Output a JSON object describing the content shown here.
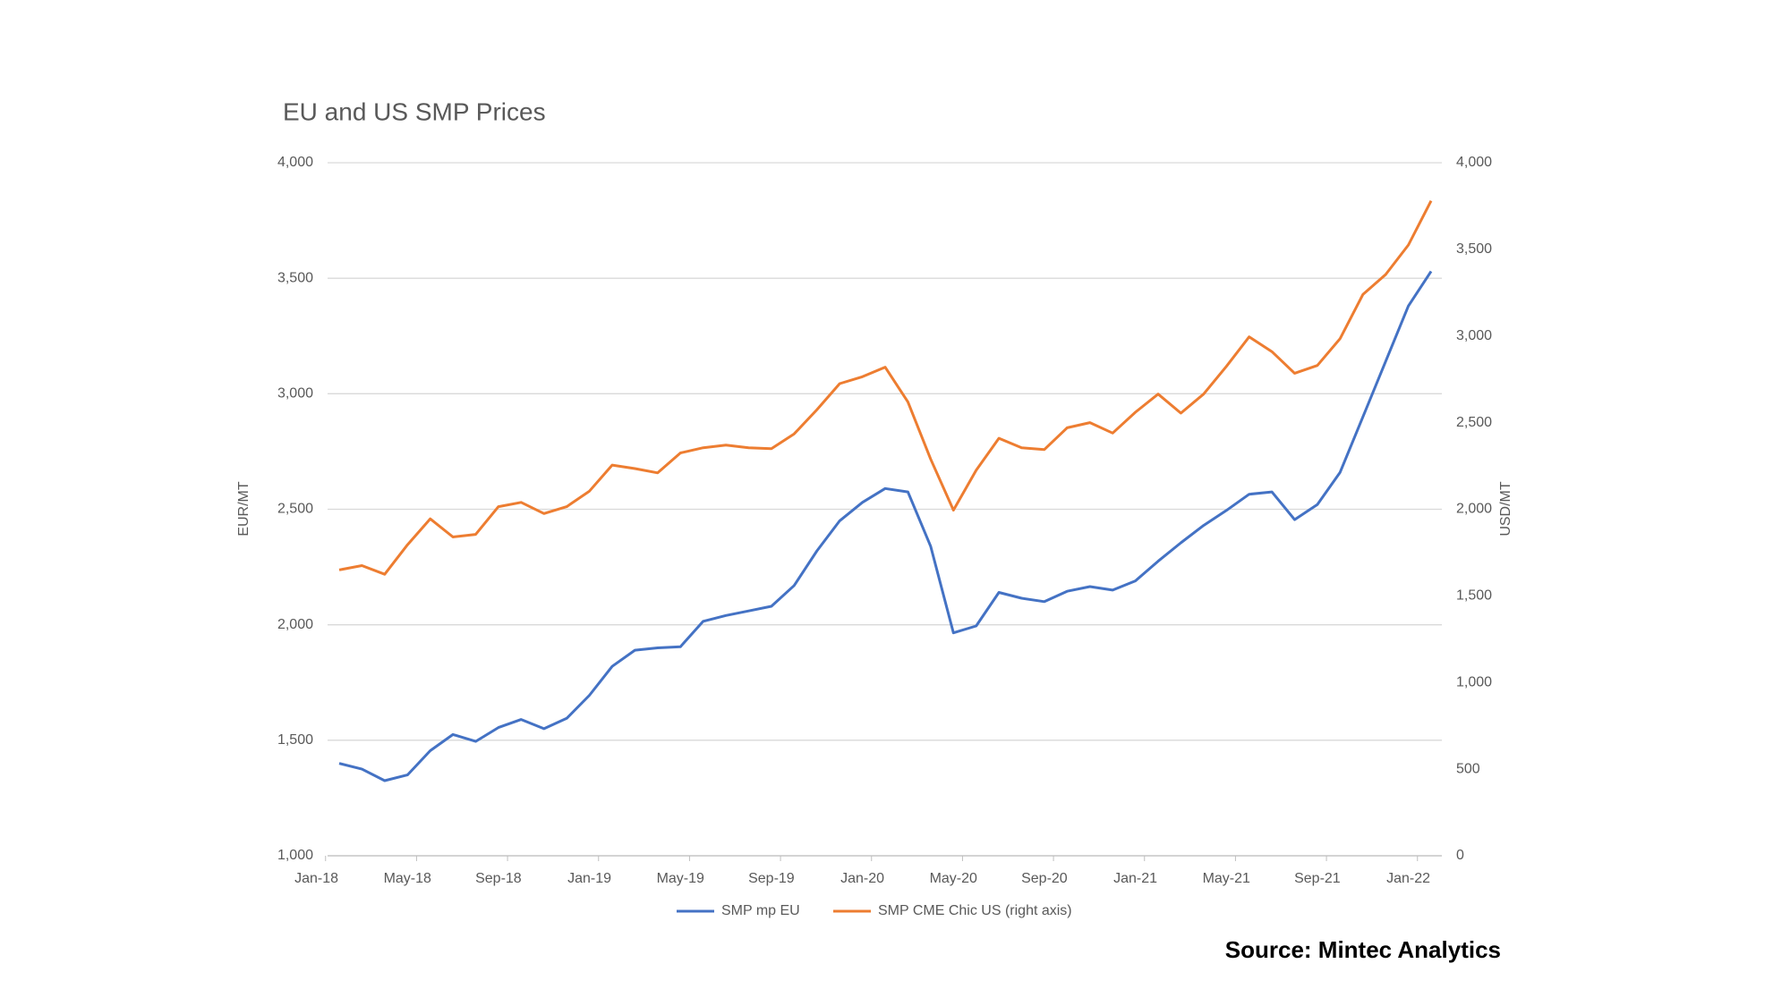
{
  "chart_data": {
    "type": "line",
    "title": "EU and US SMP Prices",
    "ylabel": "EUR/MT",
    "y2label": "USD/MT",
    "source": "Source: Mintec Analytics",
    "categories": [
      "Jan-18",
      null,
      null,
      null,
      "May-18",
      null,
      null,
      null,
      "Sep-18",
      null,
      null,
      null,
      "Jan-19",
      null,
      null,
      null,
      "May-19",
      null,
      null,
      null,
      "Sep-19",
      null,
      null,
      null,
      "Jan-20",
      null,
      null,
      null,
      "May-20",
      null,
      null,
      null,
      "Sep-20",
      null,
      null,
      null,
      "Jan-21",
      null,
      null,
      null,
      "May-21",
      null,
      null,
      null,
      "Sep-21",
      null,
      null,
      null,
      "Jan-22"
    ],
    "series": [
      {
        "name": "SMP mp EU",
        "color": "#4472c4",
        "axis": "y",
        "values": [
          1400,
          1375,
          1325,
          1350,
          1455,
          1525,
          1495,
          1555,
          1590,
          1550,
          1595,
          1695,
          1820,
          1890,
          1900,
          1905,
          2015,
          2040,
          2060,
          2080,
          2170,
          2320,
          2450,
          2530,
          2590,
          2575,
          2340,
          1965,
          1995,
          2140,
          2115,
          2100,
          2145,
          2165,
          2150,
          2190,
          2275,
          2355,
          2430,
          2495,
          2565,
          2575,
          2455,
          2520,
          2660,
          2900,
          3140,
          3380,
          3530
        ]
      },
      {
        "name": "SMP CME Chic US (right axis)",
        "color": "#ed7d31",
        "axis": "y2",
        "values": [
          1650,
          1675,
          1625,
          1795,
          1945,
          1840,
          1855,
          2015,
          2040,
          1975,
          2015,
          2105,
          2255,
          2235,
          2210,
          2325,
          2355,
          2370,
          2355,
          2350,
          2435,
          2575,
          2725,
          2765,
          2820,
          2620,
          2290,
          1995,
          2225,
          2410,
          2355,
          2345,
          2470,
          2500,
          2440,
          2560,
          2665,
          2555,
          2665,
          2825,
          2995,
          2910,
          2785,
          2830,
          2985,
          3240,
          3355,
          3525,
          3780
        ]
      }
    ],
    "ylim": [
      1000,
      4000
    ],
    "yticks": [
      {
        "value": 1000,
        "label": "1,000"
      },
      {
        "value": 1500,
        "label": "1,500"
      },
      {
        "value": 2000,
        "label": "2,000"
      },
      {
        "value": 2500,
        "label": "2,500"
      },
      {
        "value": 3000,
        "label": "3,000"
      },
      {
        "value": 3500,
        "label": "3,500"
      },
      {
        "value": 4000,
        "label": "4,000"
      }
    ],
    "y2lim": [
      0,
      4000
    ],
    "y2ticks": [
      0,
      500,
      {
        "value": 1000,
        "label": "1,000"
      },
      {
        "value": 1500,
        "label": "1,500"
      },
      {
        "value": 2000,
        "label": "2,000"
      },
      {
        "value": 2500,
        "label": "2,500"
      },
      {
        "value": 3000,
        "label": "3,000"
      },
      {
        "value": 3500,
        "label": "3,500"
      },
      {
        "value": 4000,
        "label": "4,000"
      }
    ],
    "grid": true,
    "legend": "bottom"
  }
}
